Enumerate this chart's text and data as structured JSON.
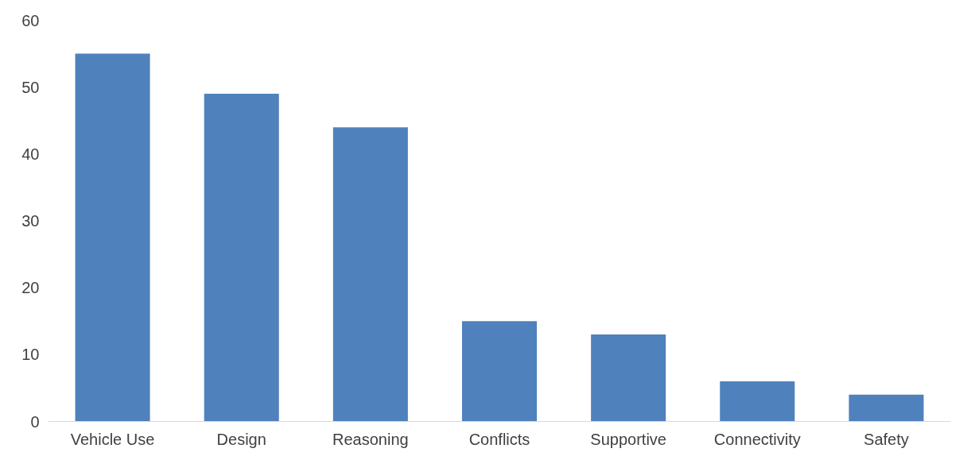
{
  "chart_data": {
    "type": "bar",
    "categories": [
      "Vehicle Use",
      "Design",
      "Reasoning",
      "Conflicts",
      "Supportive",
      "Connectivity",
      "Safety"
    ],
    "values": [
      55,
      49,
      44,
      15,
      13,
      6,
      4
    ],
    "color": "#4f81bd",
    "ylim": [
      0,
      60
    ],
    "yticks": [
      0,
      10,
      20,
      30,
      40,
      50,
      60
    ],
    "grid": false
  }
}
